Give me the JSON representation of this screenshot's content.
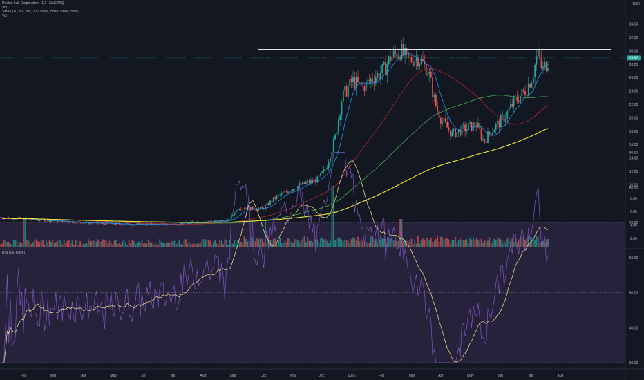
{
  "header": {
    "symbol_line": "Rocket Lab Corporation · 1D · NASDAQ",
    "line2": "Vol",
    "ma_line": "SMAs (10, 50, 200, 200, close, close, close, close)",
    "line4": "Vol",
    "currency": "USD",
    "rsi_label": "RSI (14, close)"
  },
  "price_axis": {
    "ticks": [
      "34.00",
      "32.00",
      "30.00",
      "28.00",
      "26.00",
      "24.00",
      "22.00",
      "20.00",
      "18.00",
      "16.00",
      "14.00",
      "12.00",
      "10.00",
      "8.00",
      "6.00",
      "4.00",
      "2.00"
    ],
    "last_price": "28.92"
  },
  "rsi_axis": {
    "ticks": [
      "90.00",
      "80.00",
      "70.00",
      "60.00",
      "50.00",
      "40.00",
      "30.00"
    ]
  },
  "time_axis": {
    "ticks": [
      "Feb",
      "Mar",
      "Apr",
      "May",
      "Jun",
      "Jul",
      "Aug",
      "Sep",
      "Oct",
      "Nov",
      "Dec",
      "2025",
      "Feb",
      "Mar",
      "Apr",
      "May",
      "Jun",
      "Jul",
      "Aug"
    ]
  },
  "colors": {
    "background": "#131722",
    "up": "#26a69a",
    "down": "#ef5350",
    "sma10": "#2196f3",
    "sma50": "#c62828",
    "sma100": "#4caf50",
    "sma200": "#f2e93a",
    "rsi": "#7e57c2",
    "rsi_ma": "#e5d68a",
    "resistance": "#e0e3eb"
  },
  "chart_data": {
    "type": "candlestick",
    "x": [
      "2024-01",
      "2024-02",
      "2024-03",
      "2024-04",
      "2024-05",
      "2024-06",
      "2024-07",
      "2024-08",
      "2024-09",
      "2024-10",
      "2024-11-10",
      "2024-11-22",
      "2024-12",
      "2025-01",
      "2025-01-20",
      "2025-02",
      "2025-03",
      "2025-04",
      "2025-04-20",
      "2025-05",
      "2025-06"
    ],
    "close": [
      5.0,
      4.8,
      4.6,
      4.2,
      4.1,
      4.1,
      4.5,
      4.6,
      6.5,
      10.0,
      12.0,
      23.0,
      26.0,
      28.5,
      30.0,
      26.0,
      18.5,
      16.5,
      19.0,
      23.0,
      28.9
    ],
    "sma200": [
      5.2,
      5.0,
      4.8,
      4.6,
      4.4,
      4.3,
      4.4,
      4.5,
      4.8,
      5.4,
      6.5,
      7.5,
      9.0,
      10.5,
      11.5,
      12.5,
      13.8,
      15.0,
      16.0,
      17.5,
      19.0
    ],
    "resistance": 30.2,
    "ylim": [
      0,
      35
    ],
    "rsi_ylim": [
      30,
      90
    ],
    "rsi_bands": [
      30,
      70
    ]
  }
}
